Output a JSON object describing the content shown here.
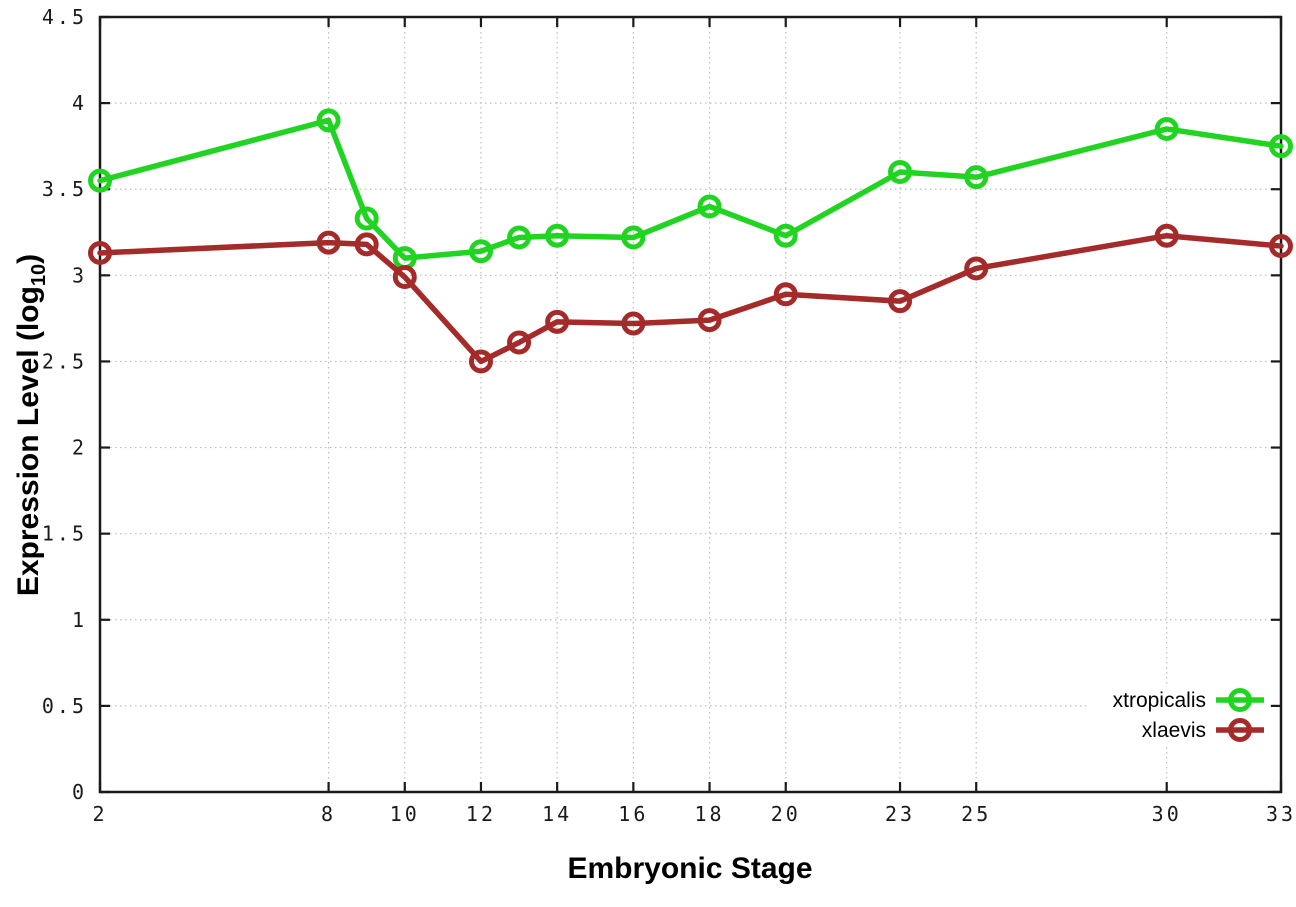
{
  "chart_data": {
    "type": "line",
    "title": "",
    "xlabel": "Embryonic Stage",
    "ylabel": "Expression Level (log10)",
    "ylabel_parts": {
      "main": "Expression Level (log",
      "sub": "10",
      "end": ")"
    },
    "x": [
      2,
      8,
      9,
      10,
      12,
      13,
      14,
      16,
      18,
      20,
      23,
      25,
      30,
      33
    ],
    "series": [
      {
        "name": "xtropicalis",
        "color": "#22d422",
        "marker": "open-circle",
        "values": [
          3.55,
          3.9,
          3.33,
          3.1,
          3.14,
          3.22,
          3.23,
          3.22,
          3.4,
          3.23,
          3.6,
          3.57,
          3.85,
          3.75
        ]
      },
      {
        "name": "xlaevis",
        "color": "#a52a2a",
        "marker": "open-circle",
        "values": [
          3.13,
          3.19,
          3.18,
          2.99,
          2.5,
          2.61,
          2.73,
          2.72,
          2.74,
          2.89,
          2.85,
          3.04,
          3.23,
          3.17
        ]
      }
    ],
    "xlim": [
      2,
      33
    ],
    "ylim": [
      0,
      4.5
    ],
    "xticks": [
      2,
      8,
      10,
      12,
      14,
      16,
      18,
      20,
      23,
      25,
      30,
      33
    ],
    "xtick_labels": [
      "2",
      "8",
      "10",
      "12",
      "14",
      "16",
      "18",
      "20",
      "23",
      "25",
      "30",
      "33"
    ],
    "yticks": [
      0,
      0.5,
      1,
      1.5,
      2,
      2.5,
      3,
      3.5,
      4,
      4.5
    ],
    "ytick_labels": [
      "0",
      "0.5",
      "1",
      "1.5",
      "2",
      "2.5",
      "3",
      "3.5",
      "4",
      "4.5"
    ],
    "grid": true,
    "grid_style": "dotted",
    "legend_position": "bottom-right",
    "background_color": "#ffffff",
    "axis_color": "#1a1a1a",
    "grid_color": "#bdbdbd"
  }
}
